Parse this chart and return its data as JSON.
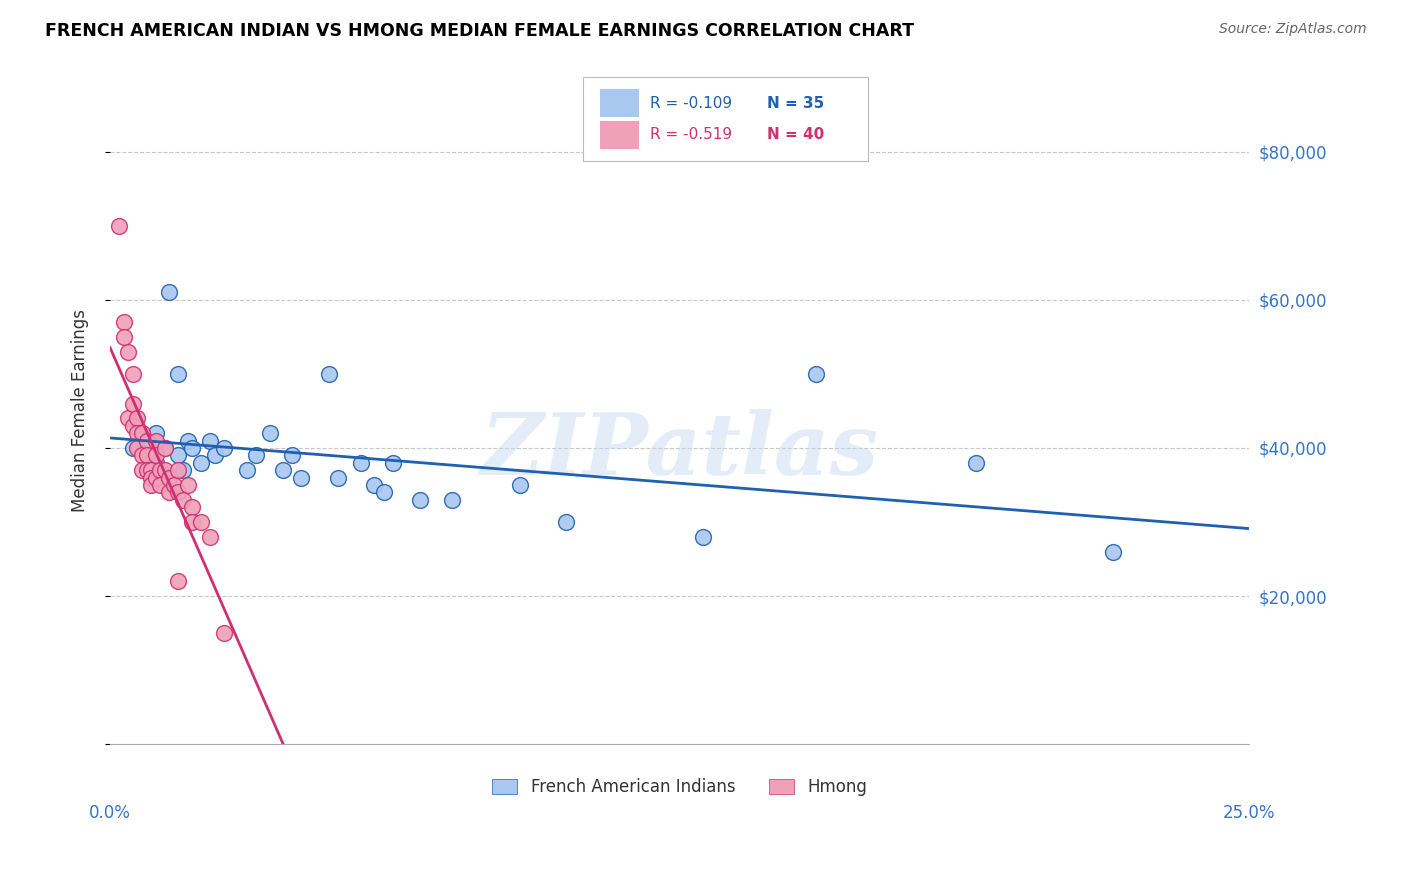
{
  "title": "FRENCH AMERICAN INDIAN VS HMONG MEDIAN FEMALE EARNINGS CORRELATION CHART",
  "source": "Source: ZipAtlas.com",
  "ylabel": "Median Female Earnings",
  "xlim": [
    0.0,
    0.25
  ],
  "ylim": [
    0,
    90000
  ],
  "yticks": [
    0,
    20000,
    40000,
    60000,
    80000
  ],
  "ytick_labels": [
    "",
    "$20,000",
    "$40,000",
    "$60,000",
    "$80,000"
  ],
  "xtick_show": [
    0.0,
    0.25
  ],
  "xtick_show_labels": [
    "0.0%",
    "25.0%"
  ],
  "legend_labels_bottom": [
    "French American Indians",
    "Hmong"
  ],
  "legend_r_blue": "R = -0.109",
  "legend_n_blue": "N = 35",
  "legend_r_pink": "R = -0.519",
  "legend_n_pink": "N = 40",
  "blue_color": "#A8C8F0",
  "pink_color": "#F0A0B8",
  "blue_line_color": "#2060B0",
  "pink_line_color": "#D03070",
  "watermark_text": "ZIPatlas",
  "blue_x": [
    0.005,
    0.008,
    0.01,
    0.01,
    0.012,
    0.013,
    0.015,
    0.015,
    0.016,
    0.017,
    0.018,
    0.02,
    0.022,
    0.023,
    0.025,
    0.03,
    0.032,
    0.035,
    0.038,
    0.04,
    0.042,
    0.048,
    0.05,
    0.055,
    0.058,
    0.06,
    0.062,
    0.068,
    0.075,
    0.09,
    0.1,
    0.13,
    0.155,
    0.19,
    0.22
  ],
  "blue_y": [
    40000,
    39000,
    42000,
    38000,
    40000,
    61000,
    50000,
    39000,
    37000,
    41000,
    40000,
    38000,
    41000,
    39000,
    40000,
    37000,
    39000,
    42000,
    37000,
    39000,
    36000,
    50000,
    36000,
    38000,
    35000,
    34000,
    38000,
    33000,
    33000,
    35000,
    30000,
    28000,
    50000,
    38000,
    26000
  ],
  "pink_x": [
    0.002,
    0.003,
    0.003,
    0.004,
    0.004,
    0.005,
    0.005,
    0.005,
    0.006,
    0.006,
    0.006,
    0.007,
    0.007,
    0.007,
    0.008,
    0.008,
    0.008,
    0.009,
    0.009,
    0.009,
    0.01,
    0.01,
    0.01,
    0.011,
    0.011,
    0.012,
    0.012,
    0.013,
    0.013,
    0.014,
    0.015,
    0.015,
    0.016,
    0.017,
    0.018,
    0.018,
    0.02,
    0.022,
    0.025,
    0.015
  ],
  "pink_y": [
    70000,
    57000,
    55000,
    53000,
    44000,
    50000,
    46000,
    43000,
    44000,
    42000,
    40000,
    42000,
    39000,
    37000,
    41000,
    39000,
    37000,
    37000,
    36000,
    35000,
    41000,
    39000,
    36000,
    37000,
    35000,
    40000,
    37000,
    36000,
    34000,
    35000,
    37000,
    34000,
    33000,
    35000,
    32000,
    30000,
    30000,
    28000,
    15000,
    22000
  ]
}
